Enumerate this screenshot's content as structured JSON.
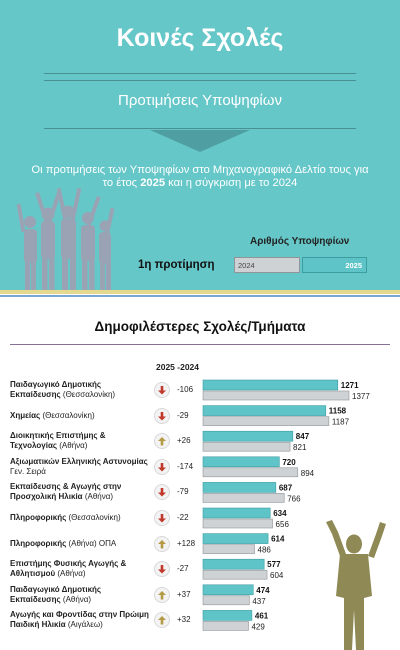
{
  "header": {
    "title": "Κοινές Σχολές",
    "subtitle": "Προτιμήσεις Υποψηφίων",
    "intro_line1": "Οι προτιμήσεις των Υποψηφίων στο Μηχανογραφικό Δελτίο τους για",
    "intro_pre": "το έτος ",
    "intro_year_a": "2025",
    "intro_mid": " και η σύγκριση με το ",
    "intro_year_b": "2024"
  },
  "summary": {
    "legend_title": "Αριθμός Υποψηφίων",
    "row_label": "1η προτίμηση",
    "label_2024": "2024",
    "label_2025": "2025"
  },
  "section": {
    "title": "Δημοφιλέστερες Σχολές/Τμήματα",
    "col_header": "2025 -2024"
  },
  "colors": {
    "teal": "#66c7c9",
    "bar_2025": "#5fc4c8",
    "bar_2024": "#cfd2d5",
    "down": "#c0392b",
    "up": "#b59a45",
    "figure": "#8f8a55",
    "crowd": "#9aa3b3"
  },
  "chart_data": {
    "type": "bar",
    "title": "Δημοφιλέστερες Σχολές/Τμήματα",
    "series": [
      {
        "name": "2025",
        "values": [
          1271,
          1158,
          847,
          720,
          687,
          634,
          614,
          577,
          474,
          461
        ]
      },
      {
        "name": "2024",
        "values": [
          1377,
          1187,
          821,
          894,
          766,
          656,
          486,
          604,
          437,
          429
        ]
      }
    ],
    "rows": [
      {
        "name": "Παιδαγωγικό Δημοτικής Εκπαίδευσης",
        "city": "(Θεσσαλονίκη)",
        "change": "-106",
        "dir": "down",
        "v2025": 1271,
        "v2024": 1377
      },
      {
        "name": "Χημείας",
        "city": "(Θεσσαλονίκη)",
        "change": "-29",
        "dir": "down",
        "v2025": 1158,
        "v2024": 1187
      },
      {
        "name": "Διοικητικής Επιστήμης & Τεχνολογίας",
        "city": "(Αθήνα)",
        "change": "+26",
        "dir": "up",
        "v2025": 847,
        "v2024": 821
      },
      {
        "name": "Αξιωματικών Ελληνικής Αστυνομίας",
        "city": "Γεν. Σειρά",
        "change": "-174",
        "dir": "down",
        "v2025": 720,
        "v2024": 894
      },
      {
        "name": "Εκπαίδευσης & Αγωγής στην Προσχολική Ηλικία",
        "city": "(Αθήνα)",
        "change": "-79",
        "dir": "down",
        "v2025": 687,
        "v2024": 766
      },
      {
        "name": "Πληροφορικής",
        "city": "(Θεσσαλονίκη)",
        "change": "-22",
        "dir": "down",
        "v2025": 634,
        "v2024": 656
      },
      {
        "name": "Πληροφορικής",
        "city": "(Αθήνα) ΟΠΑ",
        "change": "+128",
        "dir": "up",
        "v2025": 614,
        "v2024": 486
      },
      {
        "name": "Επιστήμης Φυσικής Αγωγής & Αθλητισμού",
        "city": "(Αθήνα)",
        "change": "-27",
        "dir": "down",
        "v2025": 577,
        "v2024": 604
      },
      {
        "name": "Παιδαγωγικό Δημοτικής Εκπαίδευσης",
        "city": "(Αθήνα)",
        "change": "+37",
        "dir": "up",
        "v2025": 474,
        "v2024": 437
      },
      {
        "name": "Αγωγής και Φροντίδας στην Πρώιμη Παιδική Ηλικία",
        "city": "(Αιγάλεω)",
        "change": "+32",
        "dir": "up",
        "v2025": 461,
        "v2024": 429
      }
    ],
    "xlim": [
      0,
      1377
    ],
    "grid": false,
    "legend": "top-right"
  }
}
